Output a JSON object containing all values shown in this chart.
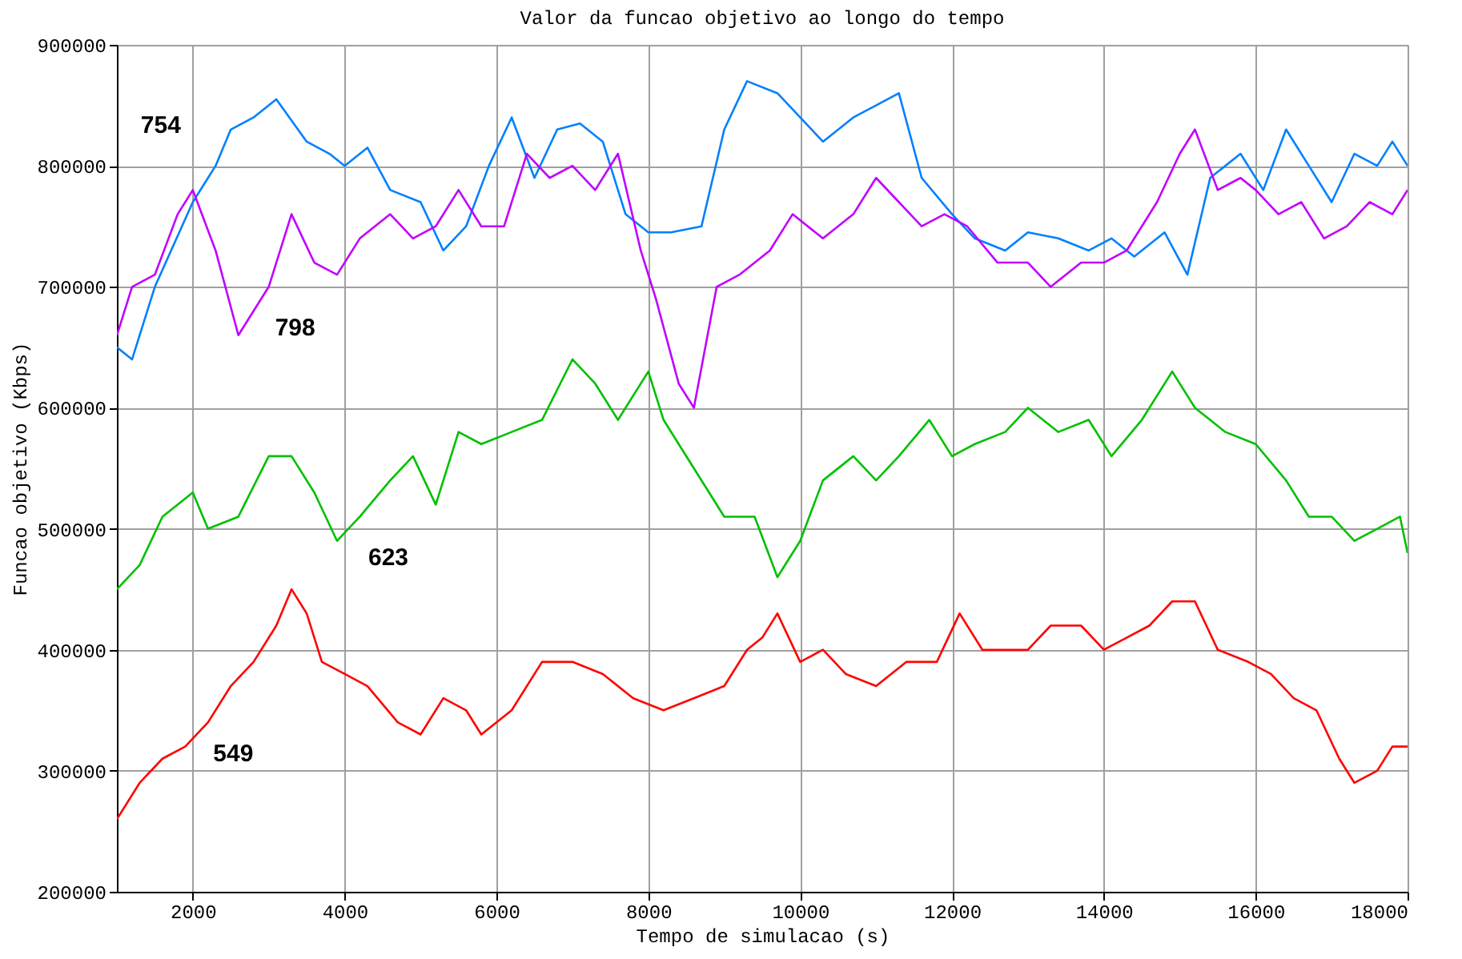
{
  "chart_data": {
    "type": "line",
    "title": "Valor da funcao objetivo ao longo do tempo",
    "xlabel": "Tempo de simulacao (s)",
    "ylabel": "Funcao objetivo (Kbps)",
    "xlim": [
      1000,
      18000
    ],
    "xticks": [
      2000,
      4000,
      6000,
      8000,
      10000,
      12000,
      14000,
      16000,
      18000
    ],
    "ylim": [
      200000,
      900000
    ],
    "yticks": [
      200000,
      300000,
      400000,
      500000,
      600000,
      700000,
      800000,
      900000
    ],
    "grid": true,
    "series": [
      {
        "name": "549",
        "color": "#ff0000",
        "x": [
          1000,
          1300,
          1600,
          1900,
          2200,
          2500,
          2800,
          3100,
          3300,
          3500,
          3700,
          4000,
          4300,
          4700,
          5000,
          5300,
          5600,
          5800,
          6200,
          6600,
          7000,
          7400,
          7800,
          8200,
          8600,
          9000,
          9300,
          9500,
          9700,
          10000,
          10300,
          10600,
          11000,
          11400,
          11800,
          12100,
          12400,
          12700,
          13000,
          13300,
          13700,
          14000,
          14300,
          14600,
          14900,
          15200,
          15500,
          15900,
          16200,
          16500,
          16800,
          17100,
          17300,
          17600,
          17800,
          18000
        ],
        "values": [
          260000,
          290000,
          310000,
          320000,
          340000,
          370000,
          390000,
          420000,
          450000,
          430000,
          390000,
          380000,
          370000,
          340000,
          330000,
          360000,
          350000,
          330000,
          350000,
          390000,
          390000,
          380000,
          360000,
          350000,
          360000,
          370000,
          400000,
          410000,
          430000,
          390000,
          400000,
          380000,
          370000,
          390000,
          390000,
          430000,
          400000,
          400000,
          400000,
          420000,
          420000,
          400000,
          410000,
          420000,
          440000,
          440000,
          400000,
          390000,
          380000,
          360000,
          350000,
          310000,
          290000,
          300000,
          320000,
          320000
        ]
      },
      {
        "name": "623",
        "color": "#00c000",
        "x": [
          1000,
          1300,
          1600,
          2000,
          2200,
          2600,
          3000,
          3300,
          3600,
          3900,
          4200,
          4600,
          4900,
          5200,
          5500,
          5800,
          6200,
          6600,
          7000,
          7300,
          7600,
          8000,
          8200,
          8600,
          9000,
          9400,
          9700,
          10000,
          10300,
          10700,
          11000,
          11300,
          11700,
          12000,
          12300,
          12700,
          13000,
          13400,
          13800,
          14100,
          14500,
          14900,
          15200,
          15600,
          16000,
          16400,
          16700,
          17000,
          17300,
          17600,
          17900,
          18000
        ],
        "values": [
          450000,
          470000,
          510000,
          530000,
          500000,
          510000,
          560000,
          560000,
          530000,
          490000,
          510000,
          540000,
          560000,
          520000,
          580000,
          570000,
          580000,
          590000,
          640000,
          620000,
          590000,
          630000,
          590000,
          550000,
          510000,
          510000,
          460000,
          490000,
          540000,
          560000,
          540000,
          560000,
          590000,
          560000,
          570000,
          580000,
          600000,
          580000,
          590000,
          560000,
          590000,
          630000,
          600000,
          580000,
          570000,
          540000,
          510000,
          510000,
          490000,
          500000,
          510000,
          480000
        ]
      },
      {
        "name": "754",
        "color": "#0080ff",
        "x": [
          1000,
          1200,
          1500,
          2000,
          2300,
          2500,
          2800,
          3100,
          3500,
          3800,
          4000,
          4300,
          4600,
          5000,
          5300,
          5600,
          5900,
          6200,
          6500,
          6800,
          7100,
          7400,
          7700,
          8000,
          8300,
          8700,
          9000,
          9300,
          9700,
          10000,
          10300,
          10700,
          11000,
          11300,
          11600,
          12000,
          12300,
          12700,
          13000,
          13400,
          13800,
          14100,
          14400,
          14800,
          15100,
          15400,
          15800,
          16100,
          16400,
          16700,
          17000,
          17300,
          17600,
          17800,
          18000
        ],
        "values": [
          650000,
          640000,
          700000,
          770000,
          800000,
          830000,
          840000,
          855000,
          820000,
          810000,
          800000,
          815000,
          780000,
          770000,
          730000,
          750000,
          800000,
          840000,
          790000,
          830000,
          835000,
          820000,
          760000,
          745000,
          745000,
          750000,
          830000,
          870000,
          860000,
          840000,
          820000,
          840000,
          850000,
          860000,
          790000,
          760000,
          740000,
          730000,
          745000,
          740000,
          730000,
          740000,
          725000,
          745000,
          710000,
          790000,
          810000,
          780000,
          830000,
          800000,
          770000,
          810000,
          800000,
          820000,
          800000
        ]
      },
      {
        "name": "798",
        "color": "#c000ff",
        "x": [
          1000,
          1200,
          1500,
          1800,
          2000,
          2300,
          2600,
          2800,
          3000,
          3300,
          3600,
          3900,
          4200,
          4600,
          4900,
          5200,
          5500,
          5800,
          6100,
          6400,
          6700,
          7000,
          7300,
          7600,
          7900,
          8100,
          8400,
          8600,
          8900,
          9200,
          9600,
          9900,
          10300,
          10700,
          11000,
          11300,
          11600,
          11900,
          12200,
          12600,
          13000,
          13300,
          13700,
          14000,
          14300,
          14700,
          15000,
          15200,
          15500,
          15800,
          16000,
          16300,
          16600,
          16900,
          17200,
          17500,
          17800,
          18000
        ],
        "values": [
          660000,
          700000,
          710000,
          760000,
          780000,
          730000,
          660000,
          680000,
          700000,
          760000,
          720000,
          710000,
          740000,
          760000,
          740000,
          750000,
          780000,
          750000,
          750000,
          810000,
          790000,
          800000,
          780000,
          810000,
          730000,
          690000,
          620000,
          600000,
          700000,
          710000,
          730000,
          760000,
          740000,
          760000,
          790000,
          770000,
          750000,
          760000,
          750000,
          720000,
          720000,
          700000,
          720000,
          720000,
          730000,
          770000,
          810000,
          830000,
          780000,
          790000,
          780000,
          760000,
          770000,
          740000,
          750000,
          770000,
          760000,
          780000
        ]
      }
    ]
  }
}
